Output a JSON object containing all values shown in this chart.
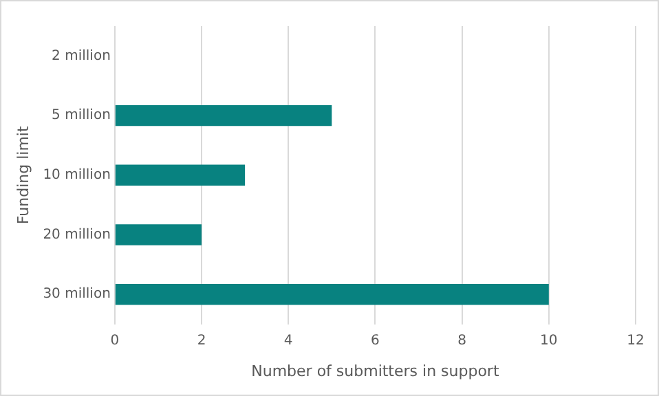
{
  "chart_data": {
    "type": "bar",
    "orientation": "horizontal",
    "xlabel": "Number of submitters in support",
    "ylabel": "Funding limit",
    "categories": [
      "2 million",
      "5 million",
      "10 million",
      "20 million",
      "30 million"
    ],
    "values": [
      0,
      5,
      3,
      2,
      10
    ],
    "color": "#088280",
    "xlim": [
      0,
      12
    ],
    "xticks": [
      0,
      2,
      4,
      6,
      8,
      10,
      12
    ],
    "grid": "x"
  }
}
